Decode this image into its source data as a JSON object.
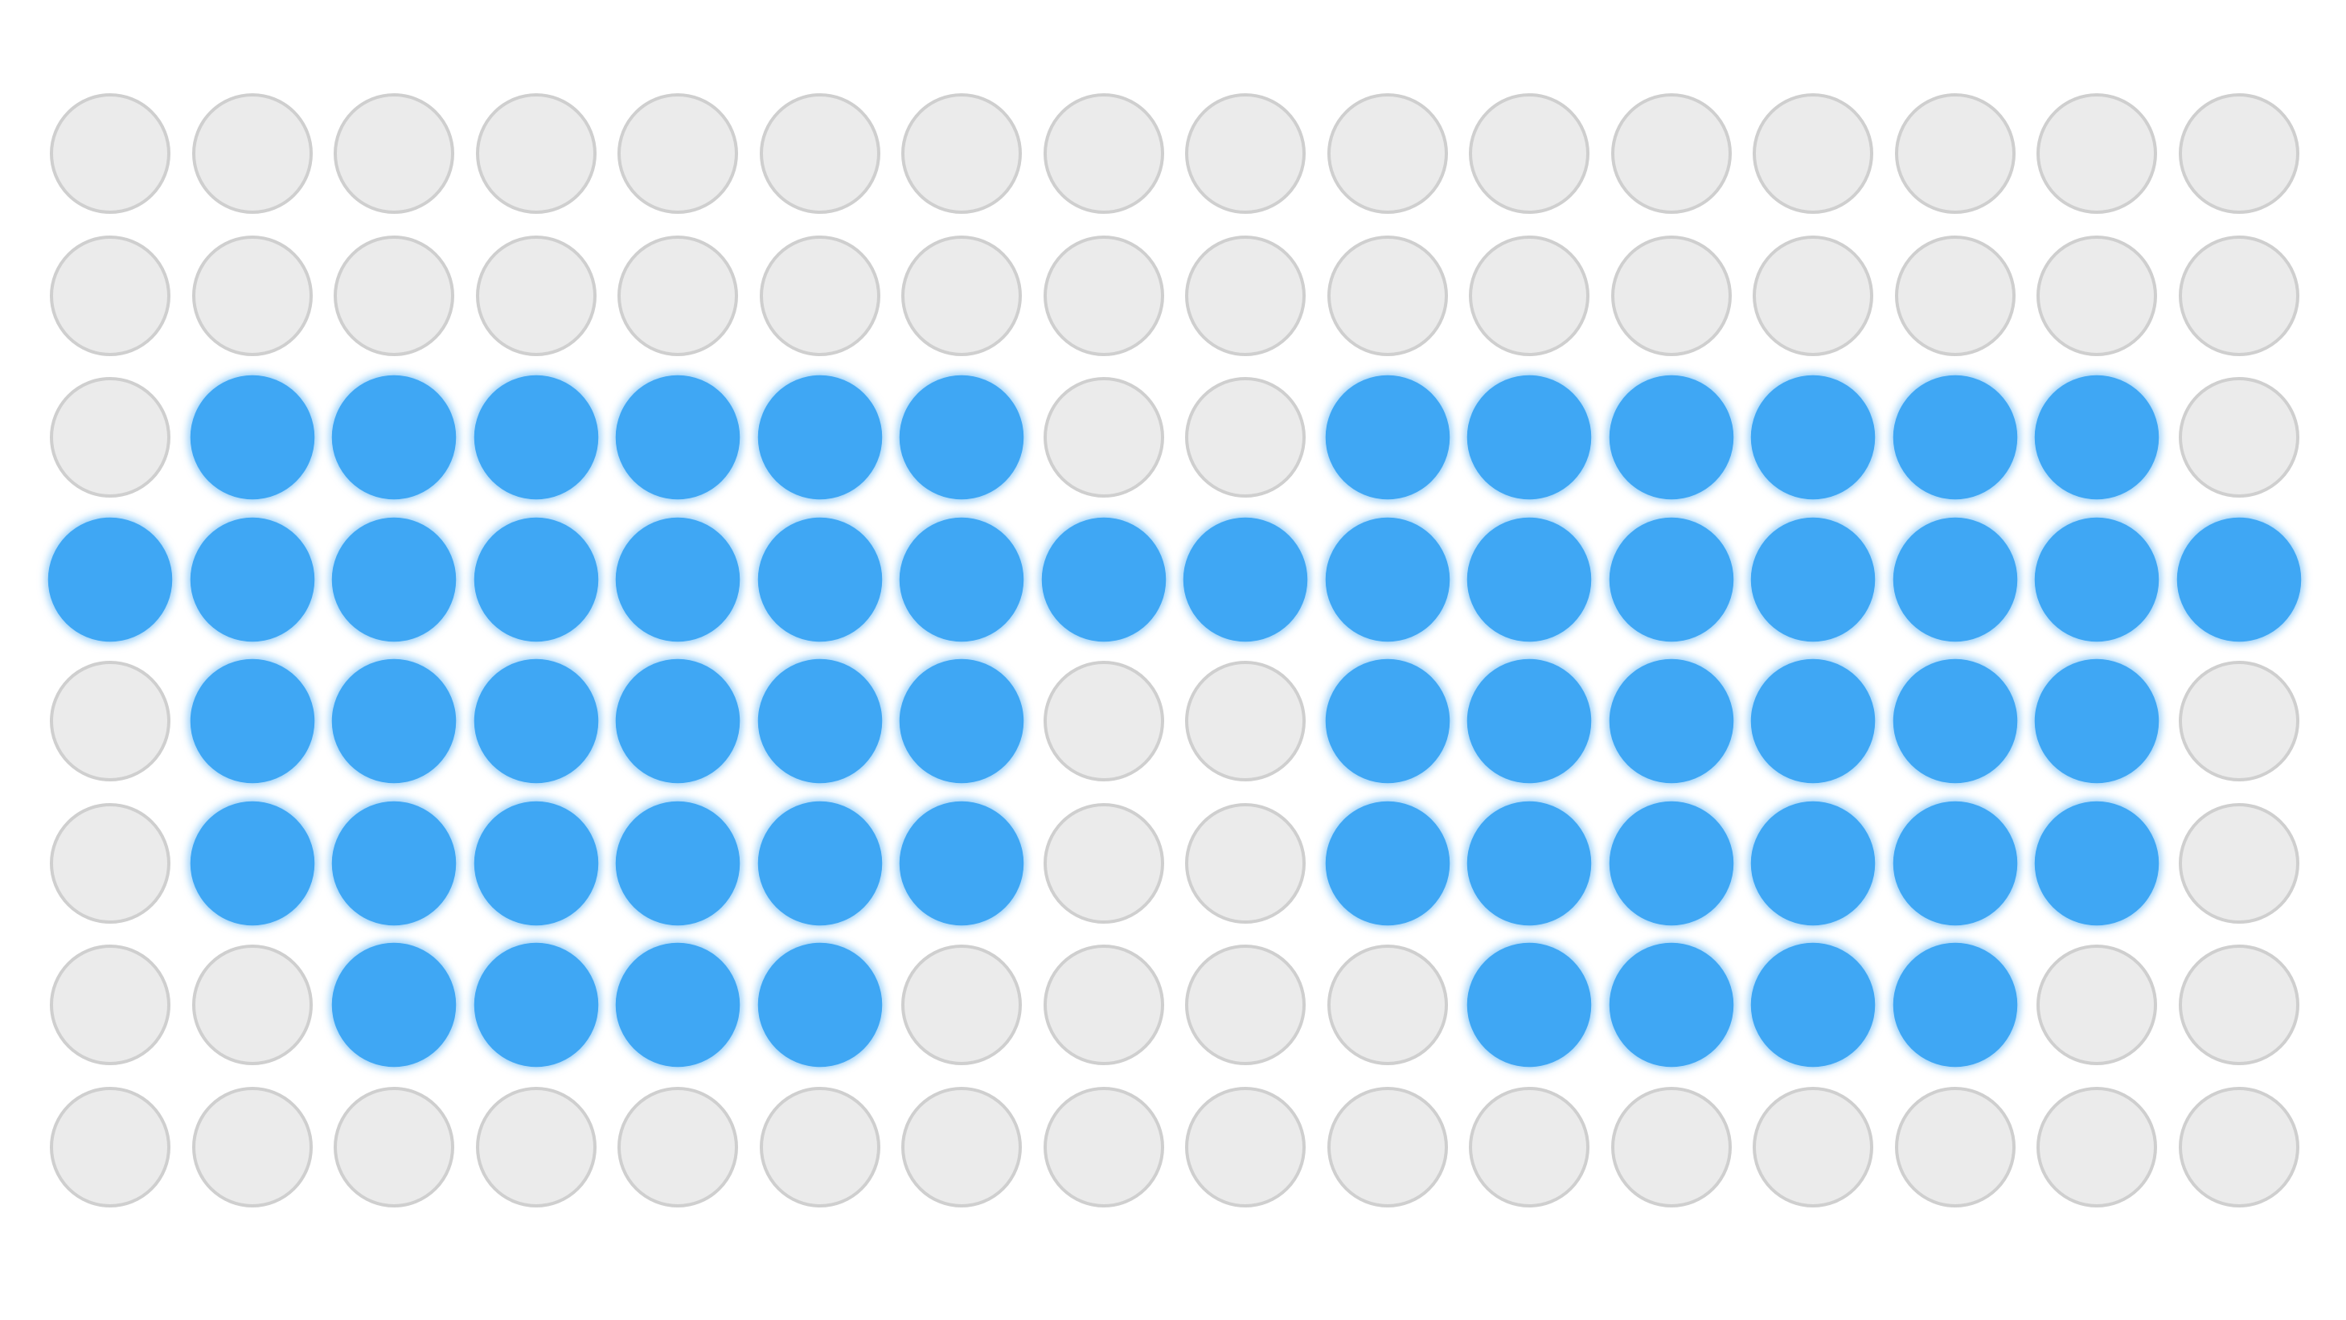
{
  "led_matrix": {
    "rows": 8,
    "cols": 16,
    "on_color": "#3fa7f4",
    "off_color": "#ebebeb",
    "off_border_color": "#cfcfcf",
    "pattern": [
      "0000000000000000",
      "0000000000000000",
      "0111111001111110",
      "1111111111111111",
      "0111111001111110",
      "0111111001111110",
      "0011110000111100",
      "0000000000000000"
    ]
  }
}
